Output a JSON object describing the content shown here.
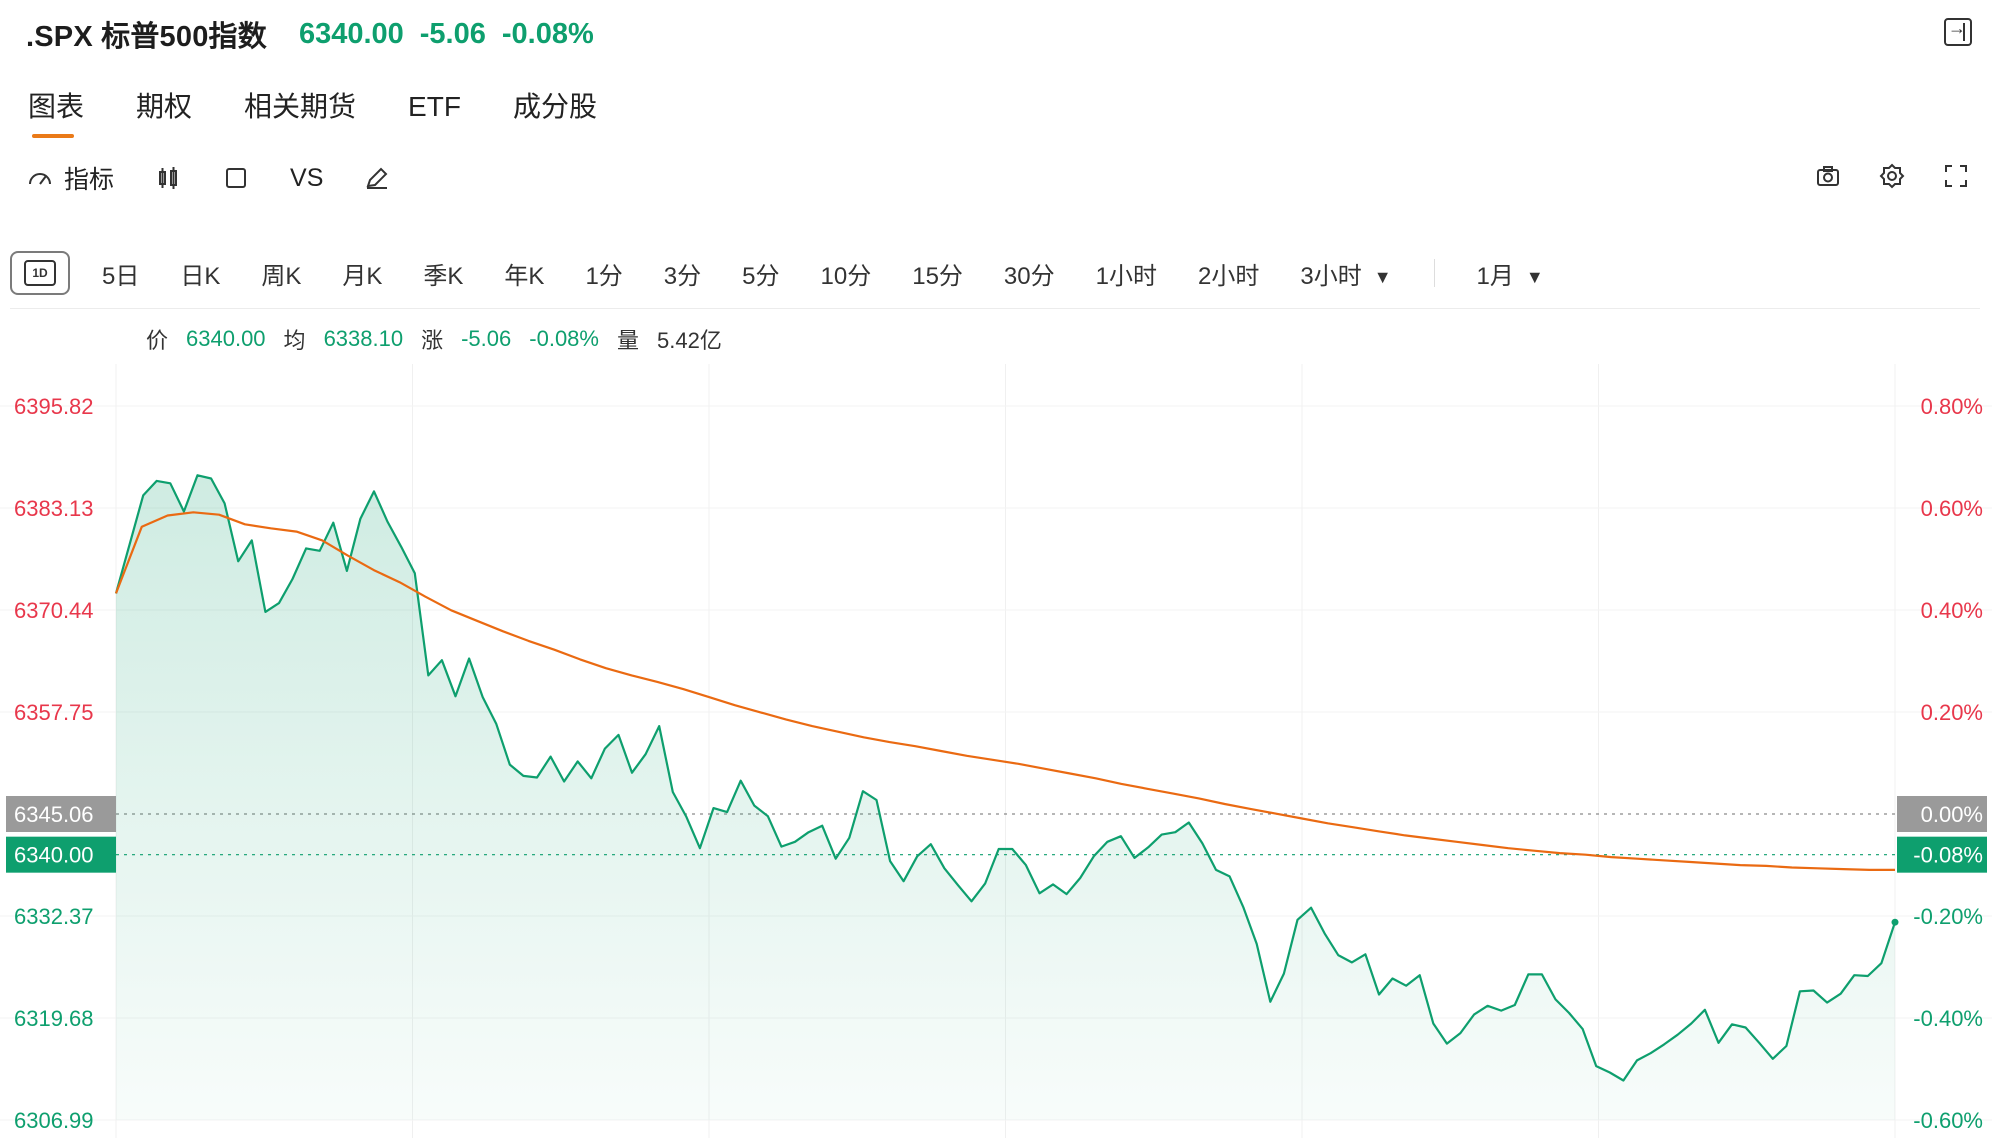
{
  "header": {
    "symbol": ".SPX 标普500指数",
    "price": "6340.00",
    "change": "-5.06",
    "change_pct": "-0.08%"
  },
  "tabs": [
    {
      "label": "图表"
    },
    {
      "label": "期权"
    },
    {
      "label": "相关期货"
    },
    {
      "label": "ETF"
    },
    {
      "label": "成分股"
    }
  ],
  "toolbar": {
    "indicator_label": "指标",
    "vs_label": "VS"
  },
  "periods": [
    {
      "label": "5日"
    },
    {
      "label": "日K"
    },
    {
      "label": "周K"
    },
    {
      "label": "月K"
    },
    {
      "label": "季K"
    },
    {
      "label": "年K"
    },
    {
      "label": "1分"
    },
    {
      "label": "3分"
    },
    {
      "label": "5分"
    },
    {
      "label": "10分"
    },
    {
      "label": "15分"
    },
    {
      "label": "30分"
    },
    {
      "label": "1小时"
    },
    {
      "label": "2小时"
    },
    {
      "label": "3小时"
    },
    {
      "label": "1月"
    }
  ],
  "active_period_badge": "1D",
  "info": {
    "price_label": "价",
    "price_value": "6340.00",
    "avg_label": "均",
    "avg_value": "6338.10",
    "chg_label": "涨",
    "chg_value": "-5.06",
    "pct_value": "-0.08%",
    "vol_label": "量",
    "vol_value": "5.42亿"
  },
  "chart_data": {
    "type": "line",
    "y_left_labels": [
      "6395.82",
      "6383.13",
      "6370.44",
      "6357.75",
      "6345.06",
      "6340.00",
      "6332.37",
      "6319.68",
      "6306.99"
    ],
    "y_right_labels": [
      "0.80%",
      "0.60%",
      "0.40%",
      "0.20%",
      "0.00%",
      "-0.08%",
      "-0.20%",
      "-0.40%",
      "-0.60%"
    ],
    "ylim": [
      6306.99,
      6395.82
    ],
    "prev_close": 6345.06,
    "current_price": 6340.0,
    "series": [
      {
        "name": "价",
        "values": [
          6372.5,
          6378.6,
          6384.7,
          6386.5,
          6386.2,
          6382.7,
          6387.2,
          6386.8,
          6383.7,
          6376.5,
          6379.1,
          6370.2,
          6371.3,
          6374.3,
          6378.1,
          6377.8,
          6381.3,
          6375.3,
          6381.8,
          6385.2,
          6381.4,
          6378.3,
          6375.0,
          6362.3,
          6364.2,
          6359.7,
          6364.4,
          6359.6,
          6356.3,
          6351.2,
          6349.8,
          6349.6,
          6352.2,
          6349.1,
          6351.6,
          6349.5,
          6353.2,
          6354.9,
          6350.2,
          6352.5,
          6356.0,
          6347.8,
          6344.7,
          6340.8,
          6345.8,
          6345.3,
          6349.2,
          6346.1,
          6344.8,
          6341.0,
          6341.6,
          6342.8,
          6343.6,
          6339.5,
          6342.1,
          6347.9,
          6346.8,
          6339.2,
          6336.7,
          6339.8,
          6341.3,
          6338.3,
          6336.2,
          6334.2,
          6336.4,
          6340.7,
          6340.7,
          6338.7,
          6335.2,
          6336.3,
          6335.1,
          6337.1,
          6339.8,
          6341.6,
          6342.3,
          6339.6,
          6340.9,
          6342.5,
          6342.8,
          6344.0,
          6341.4,
          6338.1,
          6337.3,
          6333.5,
          6328.9,
          6321.7,
          6325.2,
          6331.9,
          6333.4,
          6330.2,
          6327.5,
          6326.6,
          6327.6,
          6322.6,
          6324.6,
          6323.7,
          6325.0,
          6319.0,
          6316.5,
          6317.8,
          6320.1,
          6321.2,
          6320.6,
          6321.3,
          6325.1,
          6325.1,
          6322.0,
          6320.3,
          6318.3,
          6313.7,
          6312.9,
          6311.9,
          6314.4,
          6315.3,
          6316.4,
          6317.6,
          6319.0,
          6320.7,
          6316.6,
          6318.9,
          6318.5,
          6316.6,
          6314.6,
          6316.2,
          6323.0,
          6323.1,
          6321.6,
          6322.7,
          6325.0,
          6324.9,
          6326.5,
          6331.6
        ]
      },
      {
        "name": "均",
        "values": [
          6372.5,
          6380.8,
          6382.2,
          6382.6,
          6382.3,
          6381.1,
          6380.6,
          6380.2,
          6379.1,
          6377.2,
          6375.4,
          6373.9,
          6372.1,
          6370.4,
          6369.1,
          6367.8,
          6366.6,
          6365.5,
          6364.3,
          6363.2,
          6362.3,
          6361.5,
          6360.6,
          6359.6,
          6358.6,
          6357.7,
          6356.8,
          6356.0,
          6355.3,
          6354.6,
          6354.0,
          6353.5,
          6352.9,
          6352.3,
          6351.8,
          6351.3,
          6350.7,
          6350.1,
          6349.5,
          6348.8,
          6348.2,
          6347.6,
          6347.0,
          6346.3,
          6345.7,
          6345.1,
          6344.5,
          6343.9,
          6343.4,
          6342.9,
          6342.4,
          6342.0,
          6341.6,
          6341.2,
          6340.8,
          6340.5,
          6340.2,
          6340.0,
          6339.7,
          6339.5,
          6339.3,
          6339.1,
          6338.9,
          6338.7,
          6338.6,
          6338.4,
          6338.3,
          6338.2,
          6338.1,
          6338.1
        ]
      }
    ]
  }
}
